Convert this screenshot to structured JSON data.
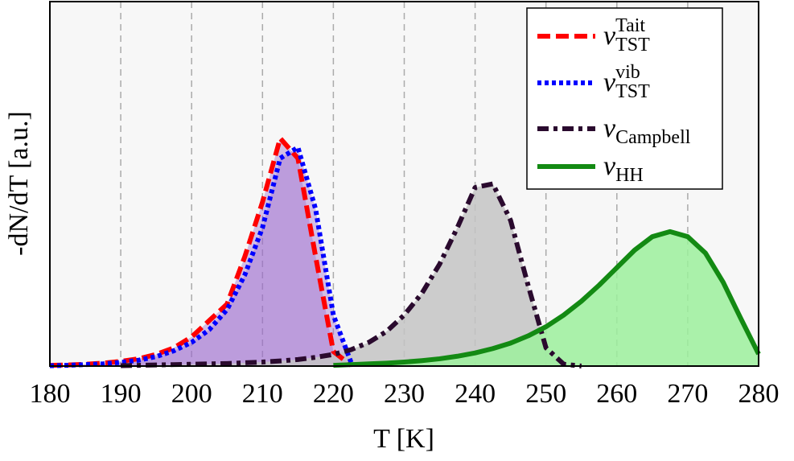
{
  "chart_data": {
    "type": "line",
    "xlabel": "T [K]",
    "ylabel": "-dN/dT [a.u.]",
    "xlim": [
      180,
      280
    ],
    "xticks": [
      180,
      190,
      200,
      210,
      220,
      230,
      240,
      250,
      260,
      270,
      280
    ],
    "ylim": [
      0,
      1
    ],
    "grid": true,
    "legend": "upper right",
    "x": [
      180,
      182.5,
      185,
      187.5,
      190,
      192.5,
      195,
      197.5,
      200,
      202.5,
      205,
      207.5,
      210,
      212.5,
      215,
      217.5,
      220,
      222.5,
      225,
      227.5,
      230,
      232.5,
      235,
      237.5,
      240,
      242.5,
      245,
      247.5,
      250,
      252.5,
      255,
      257.5,
      260,
      262.5,
      265,
      267.5,
      270,
      272.5,
      275,
      277.5,
      280
    ],
    "series": [
      {
        "name": "ν",
        "subscript": "TST",
        "superscript": "Tait",
        "color": "#ff0000",
        "linestyle": "dashed",
        "fill": "#9a6acc",
        "values": [
          0.002,
          0.003,
          0.005,
          0.008,
          0.013,
          0.02,
          0.032,
          0.05,
          0.08,
          0.125,
          0.17,
          0.3,
          0.45,
          0.625,
          0.57,
          0.3,
          0.04,
          0.002,
          null,
          null,
          null,
          null,
          null,
          null,
          null,
          null,
          null,
          null,
          null,
          null,
          null,
          null,
          null,
          null,
          null,
          null,
          null,
          null,
          null,
          null,
          null
        ]
      },
      {
        "name": "ν",
        "subscript": "TST",
        "superscript": "vib",
        "color": "#0000ff",
        "linestyle": "dotted",
        "fill": "#9a6acc",
        "values": [
          0.001,
          0.002,
          0.004,
          0.006,
          0.01,
          0.016,
          0.026,
          0.042,
          0.065,
          0.1,
          0.155,
          0.25,
          0.38,
          0.57,
          0.6,
          0.43,
          0.14,
          0.01,
          null,
          null,
          null,
          null,
          null,
          null,
          null,
          null,
          null,
          null,
          null,
          null,
          null,
          null,
          null,
          null,
          null,
          null,
          null,
          null,
          null,
          null,
          null
        ]
      },
      {
        "name": "ν",
        "subscript": "Campbell",
        "color": "#2a0a2e",
        "linestyle": "dashdot",
        "fill": "#c4c4c4",
        "values": [
          null,
          null,
          null,
          null,
          0.001,
          0.002,
          0.003,
          0.004,
          0.005,
          0.006,
          0.007,
          0.009,
          0.011,
          0.014,
          0.018,
          0.024,
          0.032,
          0.045,
          0.065,
          0.095,
          0.14,
          0.2,
          0.28,
          0.38,
          0.49,
          0.5,
          0.4,
          0.22,
          0.05,
          0.005,
          0,
          null,
          null,
          null,
          null,
          null,
          null,
          null,
          null,
          null,
          null
        ]
      },
      {
        "name": "ν",
        "subscript": "HH",
        "color": "#138a13",
        "linestyle": "solid",
        "fill": "#9cf09c",
        "values": [
          null,
          null,
          null,
          null,
          null,
          null,
          null,
          null,
          null,
          null,
          null,
          null,
          null,
          null,
          null,
          null,
          0.002,
          0.004,
          0.006,
          0.008,
          0.011,
          0.015,
          0.02,
          0.027,
          0.036,
          0.048,
          0.063,
          0.083,
          0.108,
          0.14,
          0.178,
          0.222,
          0.27,
          0.318,
          0.355,
          0.369,
          0.355,
          0.31,
          0.23,
          0.13,
          0.033
        ]
      }
    ]
  }
}
